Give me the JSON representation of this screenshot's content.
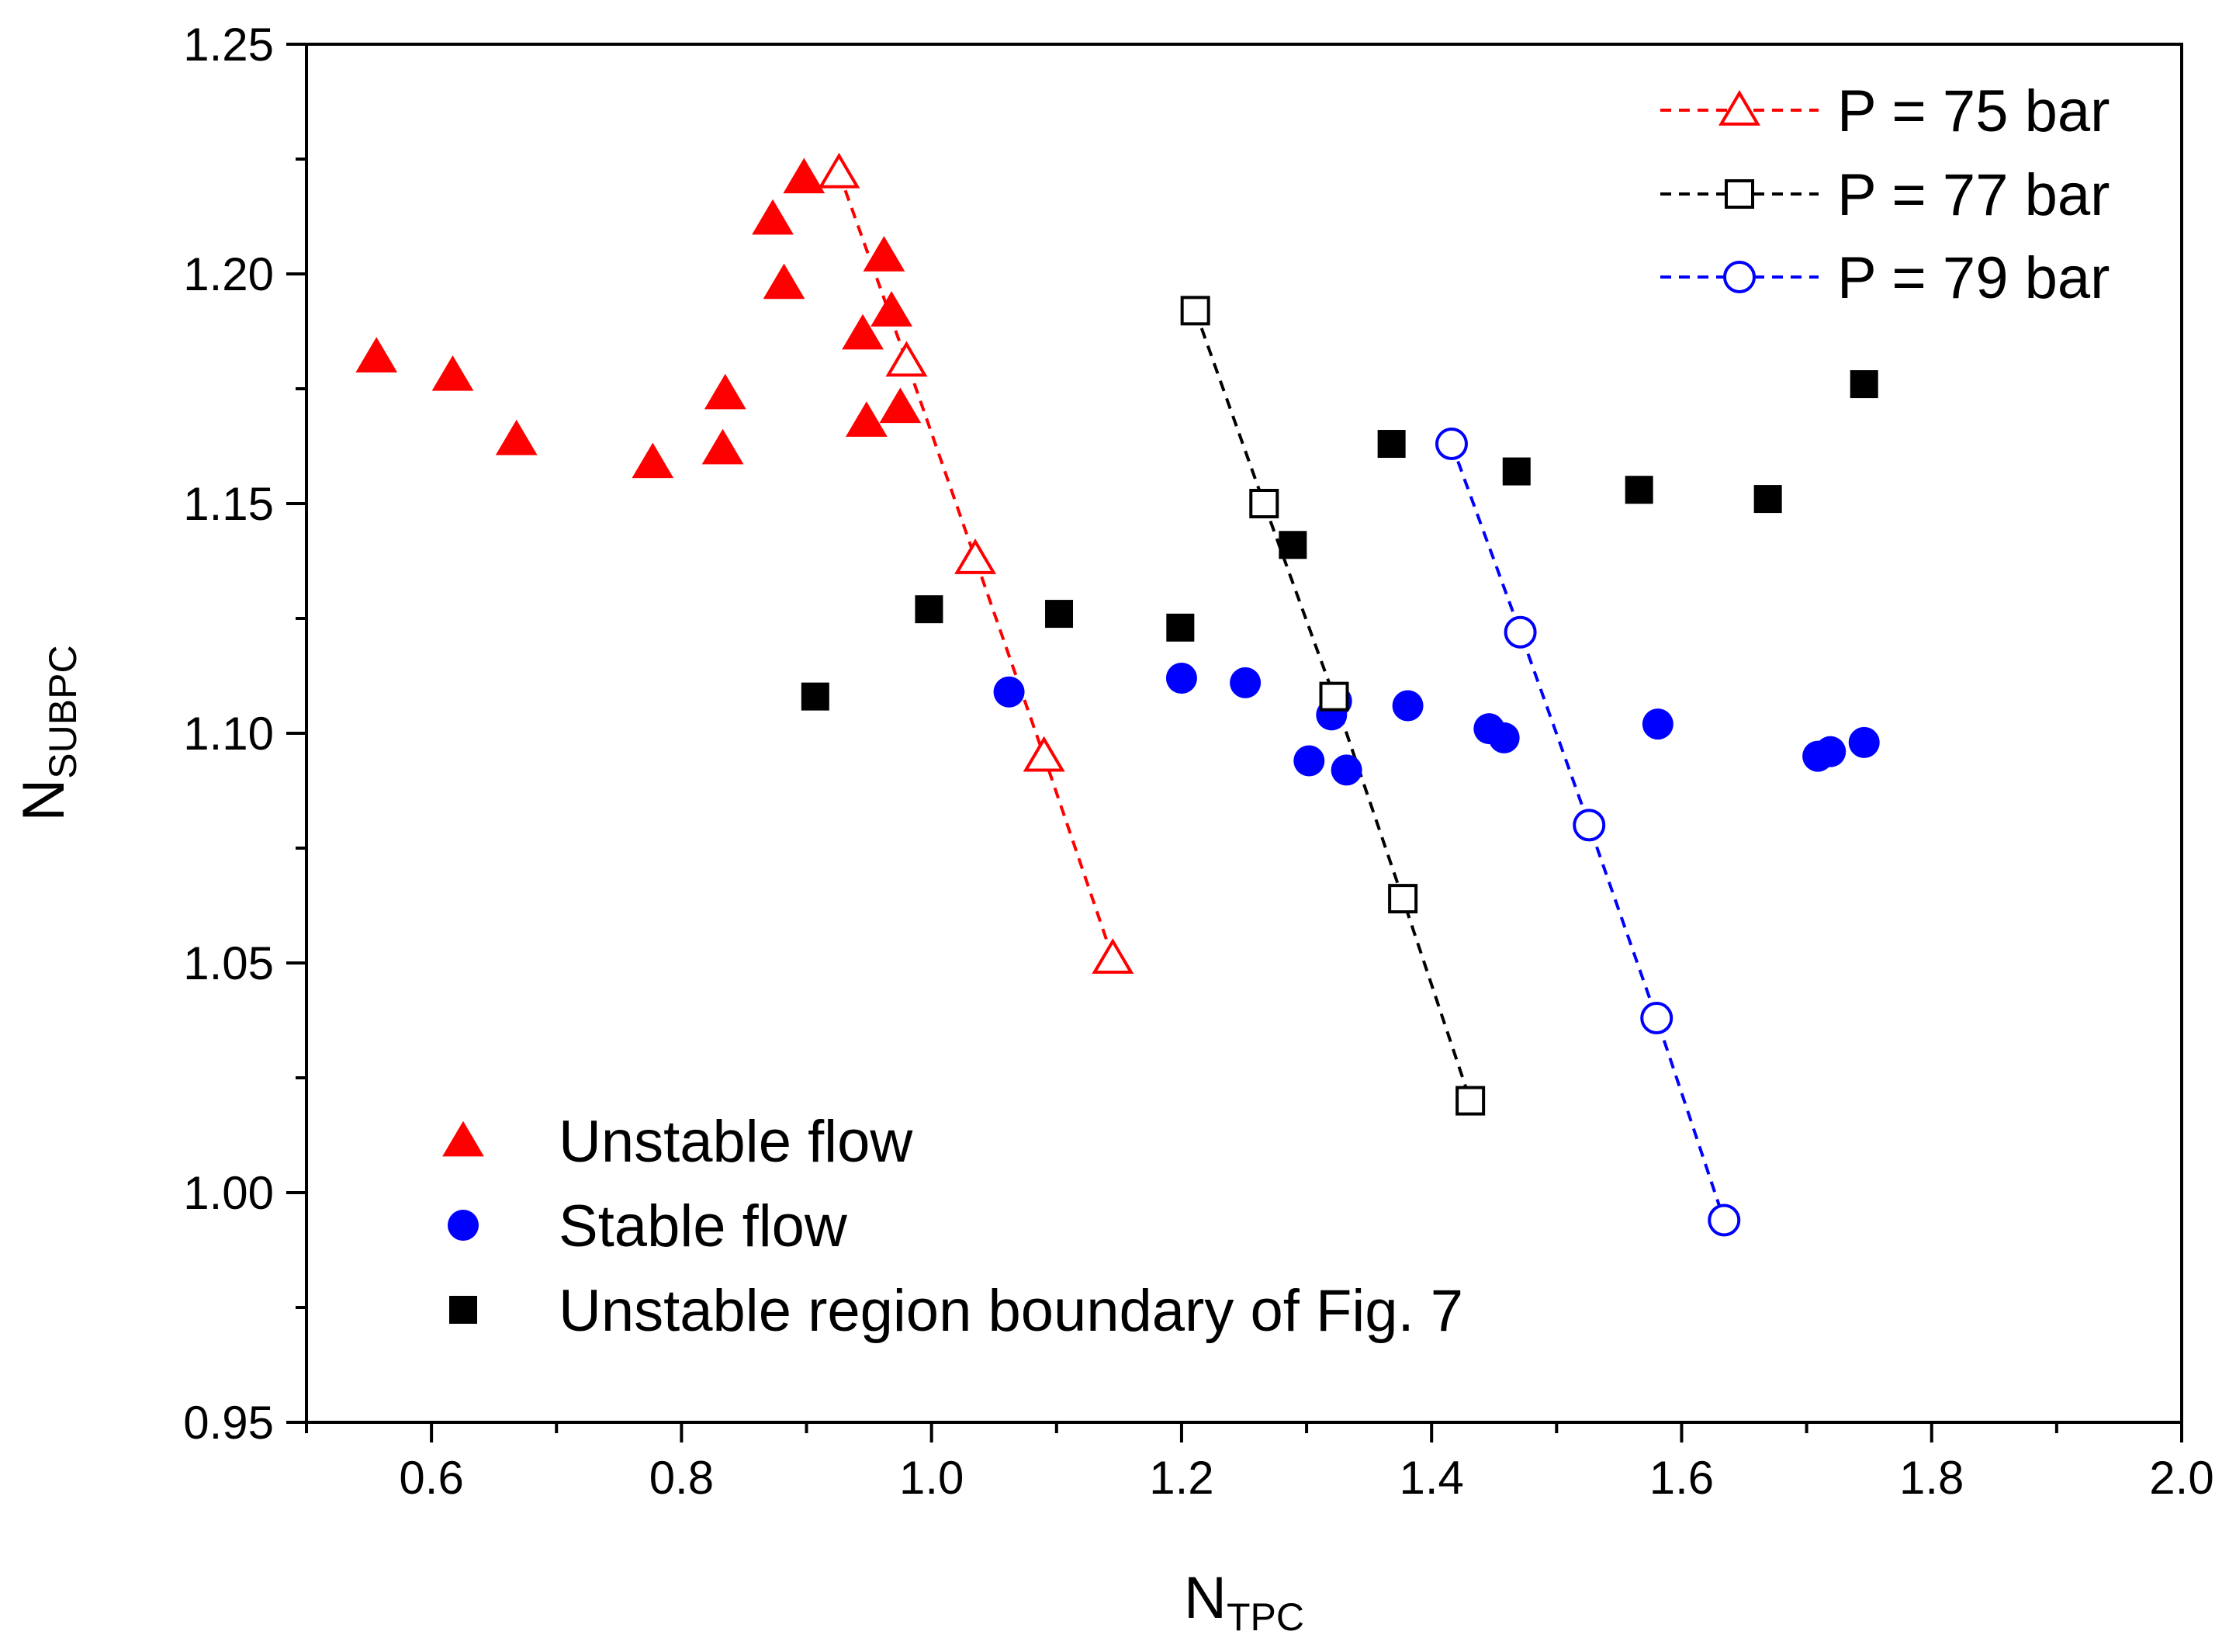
{
  "chart_data": {
    "type": "scatter",
    "xlabel": {
      "main": "N",
      "sub": "TPC"
    },
    "ylabel": {
      "main": "N",
      "sub": "SUBPC"
    },
    "xlim": [
      0.5,
      2.0
    ],
    "ylim": [
      0.95,
      1.25
    ],
    "x_major_ticks": [
      0.6,
      0.8,
      1.0,
      1.2,
      1.4,
      1.6,
      1.8,
      2.0
    ],
    "x_tick_labels": [
      "0.6",
      "0.8",
      "1.0",
      "1.2",
      "1.4",
      "1.6",
      "1.8",
      "2.0"
    ],
    "x_minor_ticks": [
      0.5,
      0.7,
      0.9,
      1.1,
      1.3,
      1.5,
      1.7,
      1.9
    ],
    "y_major_ticks": [
      0.95,
      1.0,
      1.05,
      1.1,
      1.15,
      1.2,
      1.25
    ],
    "y_tick_labels": [
      "0.95",
      "1.00",
      "1.05",
      "1.10",
      "1.15",
      "1.20",
      "1.25"
    ],
    "y_minor_ticks": [
      0.975,
      1.025,
      1.075,
      1.125,
      1.175,
      1.225
    ],
    "grid": false,
    "scatter_series": [
      {
        "name": "Unstable flow",
        "marker": "triangle-filled",
        "color": "#ff0000",
        "points": [
          [
            0.556,
            1.182
          ],
          [
            0.617,
            1.178
          ],
          [
            0.668,
            1.164
          ],
          [
            0.777,
            1.159
          ],
          [
            0.835,
            1.174
          ],
          [
            0.833,
            1.162
          ],
          [
            0.873,
            1.212
          ],
          [
            0.882,
            1.198
          ],
          [
            0.898,
            1.221
          ],
          [
            0.945,
            1.187
          ],
          [
            0.948,
            1.168
          ],
          [
            0.962,
            1.204
          ],
          [
            0.968,
            1.192
          ],
          [
            0.975,
            1.171
          ]
        ]
      },
      {
        "name": "Stable flow",
        "marker": "circle-filled",
        "color": "#0000ff",
        "points": [
          [
            1.062,
            1.109
          ],
          [
            1.2,
            1.112
          ],
          [
            1.251,
            1.111
          ],
          [
            1.302,
            1.094
          ],
          [
            1.32,
            1.104
          ],
          [
            1.324,
            1.107
          ],
          [
            1.332,
            1.092
          ],
          [
            1.381,
            1.106
          ],
          [
            1.446,
            1.101
          ],
          [
            1.458,
            1.099
          ],
          [
            1.581,
            1.102
          ],
          [
            1.709,
            1.095
          ],
          [
            1.719,
            1.096
          ],
          [
            1.746,
            1.098
          ]
        ]
      },
      {
        "name": "Unstable region boundary of Fig. 7",
        "marker": "square-filled",
        "color": "#000000",
        "points": [
          [
            0.907,
            1.108
          ],
          [
            0.998,
            1.127
          ],
          [
            1.102,
            1.126
          ],
          [
            1.199,
            1.123
          ],
          [
            1.289,
            1.141
          ],
          [
            1.368,
            1.163
          ],
          [
            1.468,
            1.157
          ],
          [
            1.566,
            1.153
          ],
          [
            1.669,
            1.151
          ],
          [
            1.746,
            1.176
          ]
        ]
      }
    ],
    "line_series": [
      {
        "name": "P = 75 bar",
        "marker": "triangle-open",
        "color": "#ff0000",
        "points": [
          [
            0.926,
            1.222
          ],
          [
            0.98,
            1.181
          ],
          [
            1.035,
            1.138
          ],
          [
            1.09,
            1.095
          ],
          [
            1.145,
            1.051
          ]
        ]
      },
      {
        "name": "P = 77 bar",
        "marker": "square-open",
        "color": "#000000",
        "points": [
          [
            1.211,
            1.192
          ],
          [
            1.266,
            1.15
          ],
          [
            1.322,
            1.108
          ],
          [
            1.377,
            1.064
          ],
          [
            1.431,
            1.02
          ]
        ]
      },
      {
        "name": "P = 79 bar",
        "marker": "circle-open",
        "color": "#0000ff",
        "points": [
          [
            1.416,
            1.163
          ],
          [
            1.471,
            1.122
          ],
          [
            1.526,
            1.08
          ],
          [
            1.58,
            1.038
          ],
          [
            1.634,
            0.994
          ]
        ]
      }
    ],
    "legend_lines": {
      "placement": "top-right",
      "entries": [
        "P = 75 bar",
        "P = 77 bar",
        "P = 79 bar"
      ]
    },
    "legend_markers": {
      "placement": "bottom-left",
      "entries": [
        "Unstable flow",
        "Stable flow",
        "Unstable region boundary of Fig. 7"
      ]
    }
  }
}
